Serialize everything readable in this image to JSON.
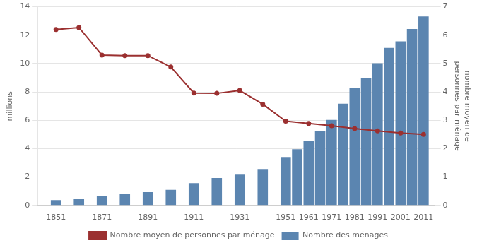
{
  "chart_data": {
    "type": "bar",
    "ylabel": "millions",
    "y2label": "nombre moyen de\npersonnes par ménage",
    "series": [
      {
        "name": "Nombre des ménages",
        "type": "bar",
        "color": "#5b85b0",
        "x": [
          1851,
          1861,
          1871,
          1881,
          1891,
          1901,
          1911,
          1921,
          1931,
          1941,
          1951,
          1956,
          1961,
          1966,
          1971,
          1976,
          1981,
          1986,
          1991,
          1996,
          2001,
          2006,
          2011
        ],
        "values": [
          0.37,
          0.48,
          0.65,
          0.83,
          0.93,
          1.1,
          1.57,
          1.93,
          2.22,
          2.57,
          3.41,
          3.96,
          4.55,
          5.22,
          6.03,
          7.17,
          8.28,
          8.99,
          10.02,
          11.1,
          11.56,
          12.44,
          13.32
        ]
      },
      {
        "name": "Nombre moyen de personnes par ménage",
        "type": "line",
        "color": "#9b3030",
        "axis": "y2",
        "x": [
          1851,
          1861,
          1871,
          1881,
          1891,
          1901,
          1911,
          1921,
          1931,
          1941,
          1951,
          1961,
          1971,
          1981,
          1991,
          2001,
          2011
        ],
        "values": [
          6.2,
          6.27,
          5.3,
          5.28,
          5.28,
          4.88,
          3.96,
          3.95,
          4.05,
          3.57,
          2.97,
          2.89,
          2.81,
          2.71,
          2.63,
          2.55,
          2.5
        ]
      }
    ],
    "xlim": [
      1843,
      2016
    ],
    "xticks": [
      1851,
      1871,
      1891,
      1911,
      1931,
      1951,
      1961,
      1971,
      1981,
      1991,
      2001,
      2011
    ],
    "ylim": [
      0,
      14
    ],
    "yticks": [
      0,
      2,
      4,
      6,
      8,
      10,
      12,
      14
    ],
    "y2lim": [
      0,
      7
    ],
    "y2ticks": [
      0,
      1,
      2,
      3,
      4,
      5,
      6,
      7
    ],
    "grid": "y",
    "legend": "bottom"
  }
}
